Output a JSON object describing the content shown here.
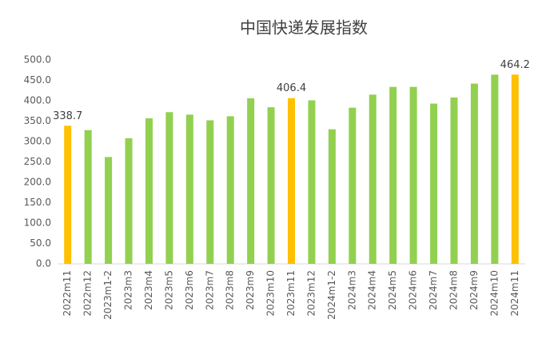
{
  "chart_data": {
    "type": "bar",
    "title": "中国快递发展指数",
    "categories": [
      "2022m11",
      "2022m12",
      "2023m1-2",
      "2023m3",
      "2023m4",
      "2023m5",
      "2023m6",
      "2023m7",
      "2023m8",
      "2023m9",
      "2023m10",
      "2023m11",
      "2023m12",
      "2024m1-2",
      "2024m3",
      "2024m4",
      "2024m5",
      "2024m6",
      "2024m7",
      "2024m8",
      "2024m9",
      "2024m10",
      "2024m11"
    ],
    "values": [
      338.7,
      328,
      262,
      308,
      357,
      372,
      366,
      352,
      362,
      406,
      384,
      406.4,
      401,
      330,
      383,
      415,
      434,
      434,
      393,
      408,
      442,
      464,
      464.2
    ],
    "color": "#92d050",
    "colors": [
      "#ffc000",
      "#92d050",
      "#92d050",
      "#92d050",
      "#92d050",
      "#92d050",
      "#92d050",
      "#92d050",
      "#92d050",
      "#92d050",
      "#92d050",
      "#ffc000",
      "#92d050",
      "#92d050",
      "#92d050",
      "#92d050",
      "#92d050",
      "#92d050",
      "#92d050",
      "#92d050",
      "#92d050",
      "#92d050",
      "#ffc000"
    ],
    "ylim": [
      0,
      500
    ],
    "yticks": [
      {
        "value": 0,
        "label": "0.0"
      },
      {
        "value": 50,
        "label": "50.0"
      },
      {
        "value": 100,
        "label": "100.0"
      },
      {
        "value": 150,
        "label": "150.0"
      },
      {
        "value": 200,
        "label": "200.0"
      },
      {
        "value": 250,
        "label": "250.0"
      },
      {
        "value": 300,
        "label": "300.0"
      },
      {
        "value": 350,
        "label": "350.0"
      },
      {
        "value": 400,
        "label": "400.0"
      },
      {
        "value": 450,
        "label": "450.0"
      },
      {
        "value": 500,
        "label": "500.0"
      }
    ],
    "grid": false
  }
}
